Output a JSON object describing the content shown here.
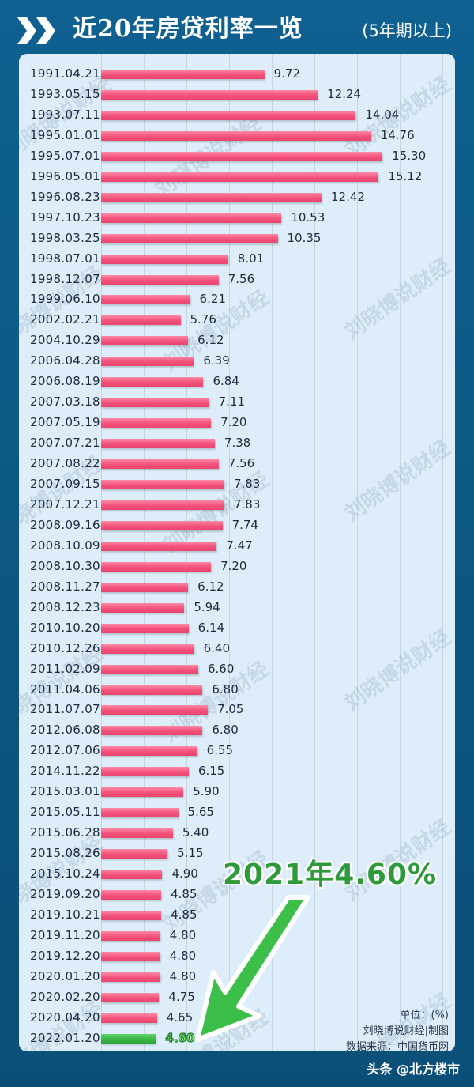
{
  "header": {
    "title": "近20年房贷利率一览",
    "subtitle": "(5年期以上)"
  },
  "callout": {
    "text": "2021年4.60%"
  },
  "notes": {
    "unit": "单位：(%)",
    "author": "刘晓博说财经|制图",
    "source": "数据来源：中国货币网"
  },
  "watermark_text": "刘晓博说财经",
  "footer": {
    "source_tag": "头条 @北方楼市"
  },
  "colors": {
    "background": "#0d5a86",
    "panel": "#ddeefa",
    "bar_pink": "#f35079",
    "bar_green": "#38b443",
    "callout_green": "#2e9a3a"
  },
  "chart_data": {
    "type": "bar",
    "orientation": "horizontal",
    "title": "近20年房贷利率一览 (5年期以上)",
    "xlabel": "",
    "ylabel": "",
    "unit": "%",
    "grid": true,
    "highlight": {
      "category": "2022.01.20",
      "color": "#38b443"
    },
    "annotation": "2021年4.60%",
    "categories": [
      "1991.04.21",
      "1993.05.15",
      "1993.07.11",
      "1995.01.01",
      "1995.07.01",
      "1996.05.01",
      "1996.08.23",
      "1997.10.23",
      "1998.03.25",
      "1998.07.01",
      "1998.12.07",
      "1999.06.10",
      "2002.02.21",
      "2004.10.29",
      "2006.04.28",
      "2006.08.19",
      "2007.03.18",
      "2007.05.19",
      "2007.07.21",
      "2007.08.22",
      "2007.09.15",
      "2007.12.21",
      "2008.09.16",
      "2008.10.09",
      "2008.10.30",
      "2008.11.27",
      "2008.12.23",
      "2010.10.20",
      "2010.12.26",
      "2011.02.09",
      "2011.04.06",
      "2011.07.07",
      "2012.06.08",
      "2012.07.06",
      "2014.11.22",
      "2015.03.01",
      "2015.05.11",
      "2015.06.28",
      "2015.08.26",
      "2015.10.24",
      "2019.09.20",
      "2019.10.21",
      "2019.11.20",
      "2019.12.20",
      "2020.01.20",
      "2020.02.20",
      "2020.04.20",
      "2022.01.20"
    ],
    "values": [
      9.72,
      12.24,
      14.04,
      14.76,
      15.3,
      15.12,
      12.42,
      10.53,
      10.35,
      8.01,
      7.56,
      6.21,
      5.76,
      6.12,
      6.39,
      6.84,
      7.11,
      7.2,
      7.38,
      7.56,
      7.83,
      7.83,
      7.74,
      7.47,
      7.2,
      6.12,
      5.94,
      6.14,
      6.4,
      6.6,
      6.8,
      7.05,
      6.8,
      6.55,
      6.15,
      5.9,
      5.65,
      5.4,
      5.15,
      4.9,
      4.85,
      4.85,
      4.8,
      4.8,
      4.8,
      4.75,
      4.65,
      4.6
    ],
    "labels": [
      "9.72",
      "12.24",
      "14.04",
      "14.76",
      "15.30",
      "15.12",
      "12.42",
      "10.53",
      "10.35",
      "8.01",
      "7.56",
      "6.21",
      "5.76",
      "6.12",
      "6.39",
      "6.84",
      "7.11",
      "7.20",
      "7.38",
      "7.56",
      "7.83",
      "7.83",
      "7.74",
      "7.47",
      "7.20",
      "6.12",
      "5.94",
      "6.14",
      "6.40",
      "6.60",
      "6.80",
      "7.05",
      "6.80",
      "6.55",
      "6.15",
      "5.90",
      "5.65",
      "5.40",
      "5.15",
      "4.90",
      "4.85",
      "4.85",
      "4.80",
      "4.80",
      "4.80",
      "4.75",
      "4.65",
      "4.60"
    ]
  }
}
